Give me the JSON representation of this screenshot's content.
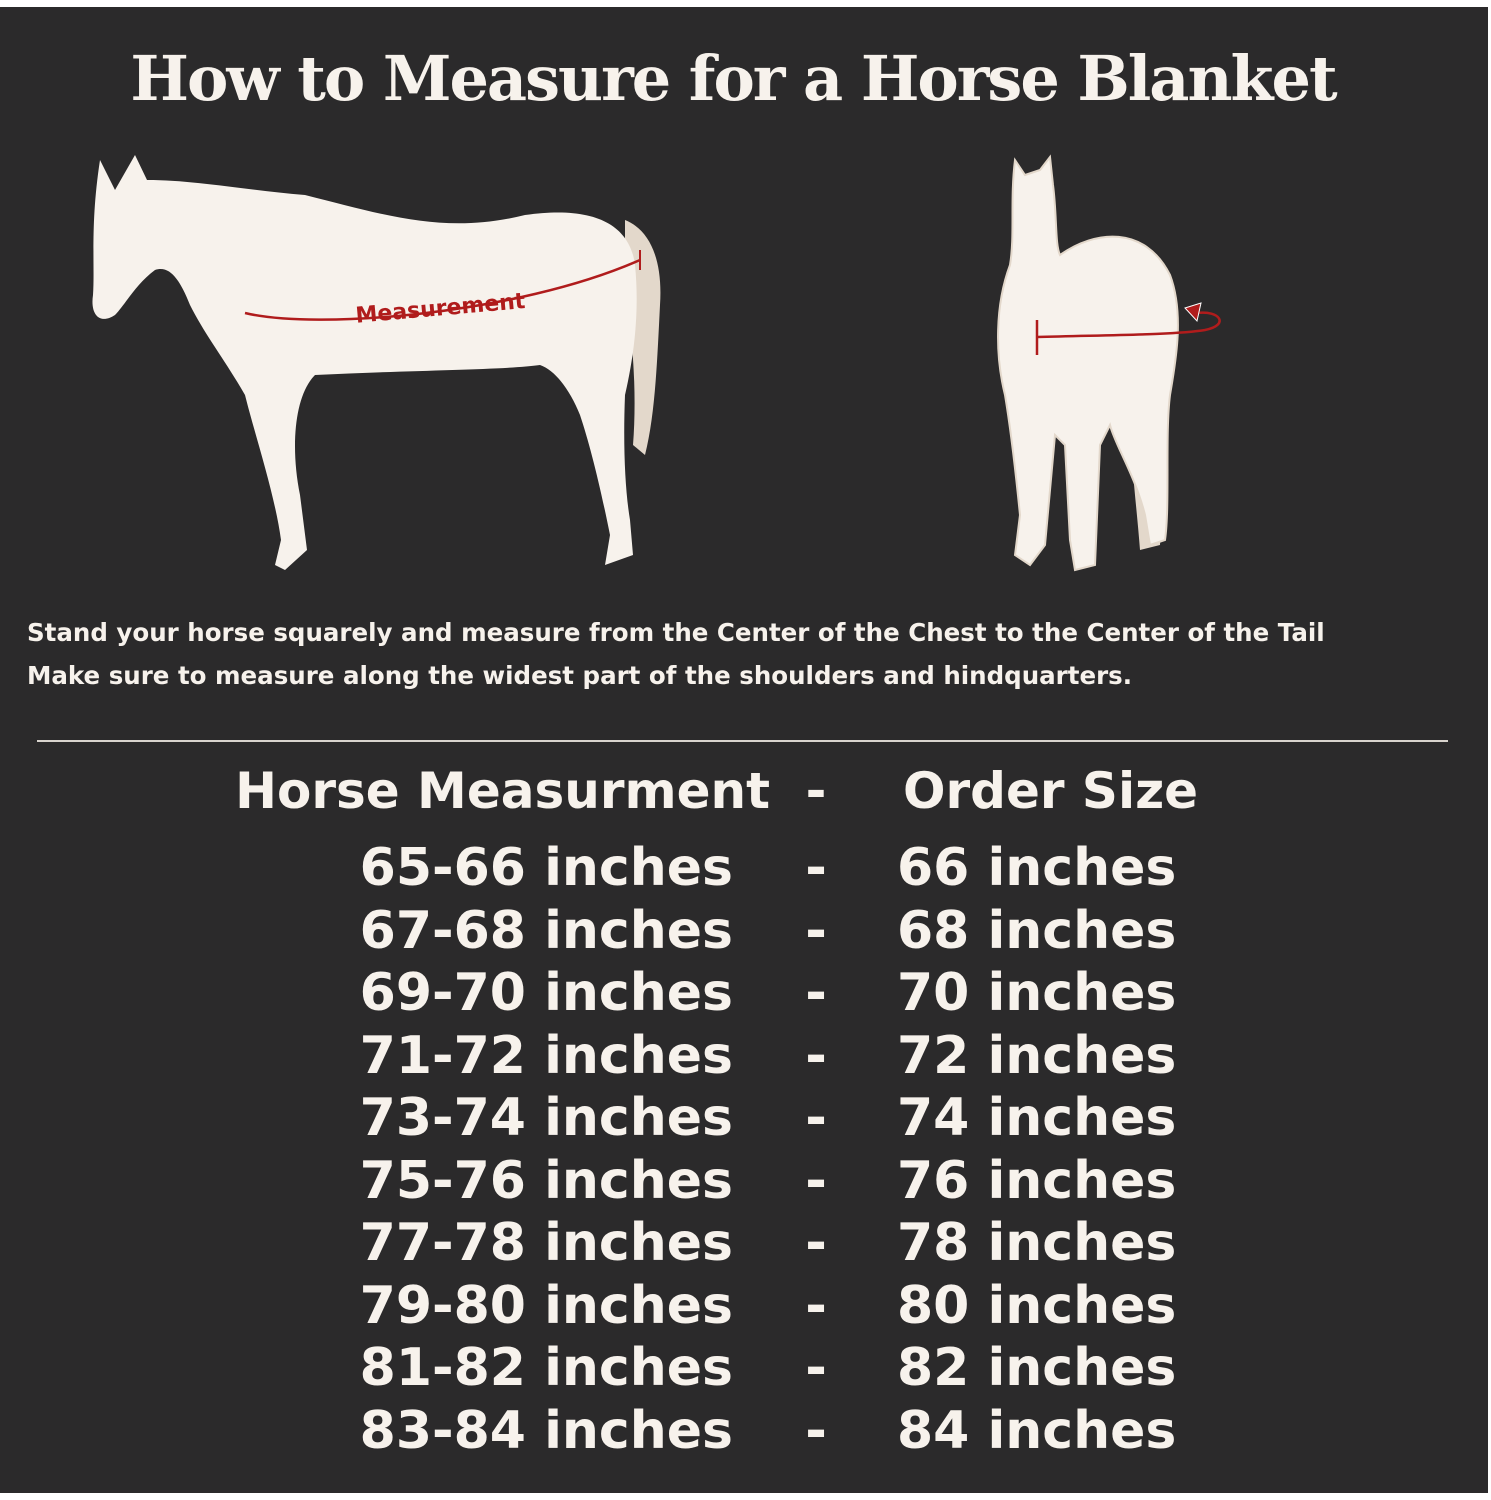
{
  "title": "How to Measure for a Horse Blanket",
  "diagram": {
    "side_label": "Measurement",
    "colors": {
      "background": "#2b2a2b",
      "horse": "#f7f2ec",
      "tail": "#e3d8cb",
      "measure_line": "#b01c1c"
    }
  },
  "instructions": [
    "Stand your horse squarely and measure from the Center of the Chest to the Center of the Tail",
    "Make sure to measure along the widest part of the shoulders and hindquarters."
  ],
  "size_table": {
    "headers": {
      "measurement": "Horse Measurment",
      "separator": "-",
      "size": "Order Size"
    },
    "rows": [
      {
        "measurement": "65-66 inches",
        "separator": "-",
        "size": "66 inches"
      },
      {
        "measurement": "67-68 inches",
        "separator": "-",
        "size": "68 inches"
      },
      {
        "measurement": "69-70 inches",
        "separator": "-",
        "size": "70 inches"
      },
      {
        "measurement": "71-72 inches",
        "separator": "-",
        "size": "72 inches"
      },
      {
        "measurement": "73-74 inches",
        "separator": "-",
        "size": "74 inches"
      },
      {
        "measurement": "75-76 inches",
        "separator": "-",
        "size": "76 inches"
      },
      {
        "measurement": "77-78 inches",
        "separator": "-",
        "size": "78 inches"
      },
      {
        "measurement": "79-80 inches",
        "separator": "-",
        "size": "80 inches"
      },
      {
        "measurement": "81-82 inches",
        "separator": "-",
        "size": "82 inches"
      },
      {
        "measurement": "83-84 inches",
        "separator": "-",
        "size": "84 inches"
      }
    ]
  }
}
